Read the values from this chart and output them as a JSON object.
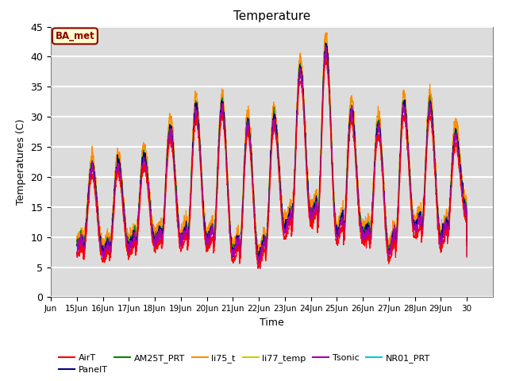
{
  "title": "Temperature",
  "xlabel": "Time",
  "ylabel": "Temperatures (C)",
  "ylim": [
    0,
    45
  ],
  "annotation": "BA_met",
  "annotation_color": "#8B0000",
  "annotation_bg": "#FFFFCC",
  "background_color": "#DCDCDC",
  "grid_color": "white",
  "series_colors": {
    "AirT": "#FF0000",
    "PanelT": "#00008B",
    "AM25T_PRT": "#008800",
    "li75_t": "#FF8C00",
    "li77_temp": "#CCCC00",
    "Tsonic": "#AA00AA",
    "NR01_PRT": "#00CCCC"
  },
  "x_tick_labels": [
    "Jun",
    "15Jun",
    "16Jun",
    "17Jun",
    "18Jun",
    "19Jun",
    "20Jun",
    "21Jun",
    "22Jun",
    "23Jun",
    "24Jun",
    "25Jun",
    "26Jun",
    "27Jun",
    "28Jun",
    "29Jun",
    "30"
  ],
  "x_tick_positions": [
    0,
    1,
    2,
    3,
    4,
    5,
    6,
    7,
    8,
    9,
    10,
    11,
    12,
    13,
    14,
    15,
    16
  ],
  "y_ticks": [
    0,
    5,
    10,
    15,
    20,
    25,
    30,
    35,
    40,
    45
  ]
}
